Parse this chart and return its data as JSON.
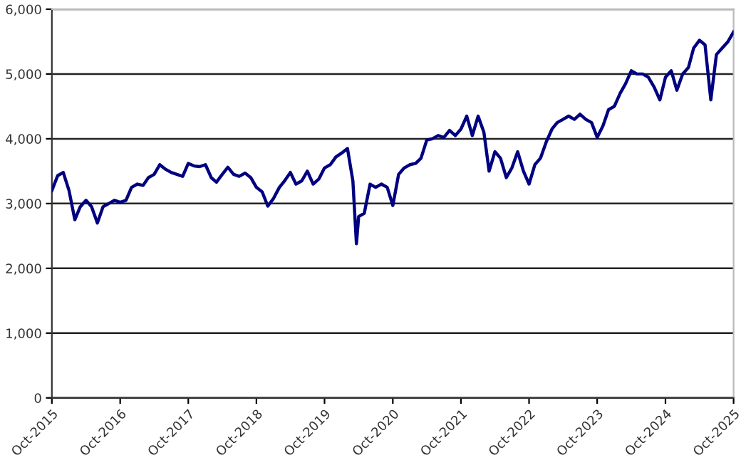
{
  "chart_data": {
    "type": "line",
    "x": [
      "2015-10",
      "2015-11",
      "2015-12",
      "2016-01",
      "2016-02",
      "2016-03",
      "2016-04",
      "2016-05",
      "2016-06",
      "2016-07",
      "2016-08",
      "2016-09",
      "2016-10",
      "2016-11",
      "2016-12",
      "2017-01",
      "2017-02",
      "2017-03",
      "2017-04",
      "2017-05",
      "2017-06",
      "2017-07",
      "2017-08",
      "2017-09",
      "2017-10",
      "2017-11",
      "2017-12",
      "2018-01",
      "2018-02",
      "2018-03",
      "2018-04",
      "2018-05",
      "2018-06",
      "2018-07",
      "2018-08",
      "2018-09",
      "2018-10",
      "2018-11",
      "2018-12",
      "2019-01",
      "2019-02",
      "2019-03",
      "2019-04",
      "2019-05",
      "2019-06",
      "2019-07",
      "2019-08",
      "2019-09",
      "2019-10",
      "2019-11",
      "2019-12",
      "2020-01",
      "2020-02",
      "2020-03",
      "2020-03-20",
      "2020-04",
      "2020-05",
      "2020-06",
      "2020-07",
      "2020-08",
      "2020-09",
      "2020-10",
      "2020-11",
      "2020-12",
      "2021-01",
      "2021-02",
      "2021-03",
      "2021-04",
      "2021-05",
      "2021-06",
      "2021-07",
      "2021-08",
      "2021-09",
      "2021-10",
      "2021-11",
      "2021-12",
      "2022-01",
      "2022-02",
      "2022-03",
      "2022-04",
      "2022-05",
      "2022-06",
      "2022-07",
      "2022-08",
      "2022-09",
      "2022-10",
      "2022-11",
      "2022-12",
      "2023-01",
      "2023-02",
      "2023-03",
      "2023-04",
      "2023-05",
      "2023-06",
      "2023-07",
      "2023-08",
      "2023-09",
      "2023-10",
      "2023-11",
      "2023-12",
      "2024-01",
      "2024-02",
      "2024-03",
      "2024-04",
      "2024-05",
      "2024-06",
      "2024-07",
      "2024-08",
      "2024-09",
      "2024-10",
      "2024-11",
      "2024-12",
      "2025-01",
      "2025-02",
      "2025-03",
      "2025-04",
      "2025-05",
      "2025-06",
      "2025-07",
      "2025-08",
      "2025-09",
      "2025-10"
    ],
    "series": [
      {
        "color": "#000080",
        "values": [
          3200,
          3430,
          3480,
          3200,
          2750,
          2950,
          3050,
          2950,
          2700,
          2950,
          3000,
          3050,
          3020,
          3050,
          3250,
          3300,
          3280,
          3400,
          3450,
          3600,
          3530,
          3480,
          3450,
          3420,
          3620,
          3580,
          3570,
          3600,
          3400,
          3330,
          3450,
          3560,
          3450,
          3420,
          3470,
          3400,
          3250,
          3180,
          2960,
          3080,
          3250,
          3350,
          3480,
          3300,
          3350,
          3500,
          3300,
          3380,
          3550,
          3600,
          3720,
          3780,
          3850,
          3350,
          2380,
          2800,
          2850,
          3300,
          3250,
          3300,
          3250,
          2970,
          3450,
          3550,
          3600,
          3620,
          3700,
          3980,
          4000,
          4050,
          4020,
          4130,
          4050,
          4150,
          4350,
          4050,
          4350,
          4100,
          3500,
          3800,
          3700,
          3400,
          3550,
          3800,
          3500,
          3300,
          3600,
          3700,
          3950,
          4150,
          4250,
          4300,
          4350,
          4300,
          4380,
          4300,
          4250,
          4020,
          4200,
          4450,
          4500,
          4700,
          4850,
          5050,
          5000,
          5000,
          4950,
          4800,
          4600,
          4950,
          5050,
          4750,
          5000,
          5100,
          5400,
          5520,
          5450,
          4600,
          5300,
          5400,
          5500,
          5650
        ]
      }
    ],
    "xlim": [
      "2015-10",
      "2025-10"
    ],
    "xticks": [
      {
        "value": "2015-10",
        "label": "Oct-2015"
      },
      {
        "value": "2016-10",
        "label": "Oct-2016"
      },
      {
        "value": "2017-10",
        "label": "Oct-2017"
      },
      {
        "value": "2018-10",
        "label": "Oct-2018"
      },
      {
        "value": "2019-10",
        "label": "Oct-2019"
      },
      {
        "value": "2020-10",
        "label": "Oct-2020"
      },
      {
        "value": "2021-10",
        "label": "Oct-2021"
      },
      {
        "value": "2022-10",
        "label": "Oct-2022"
      },
      {
        "value": "2023-10",
        "label": "Oct-2023"
      },
      {
        "value": "2024-10",
        "label": "Oct-2024"
      },
      {
        "value": "2025-10",
        "label": "Oct-2025"
      }
    ],
    "ylim": [
      0,
      6000
    ],
    "yticks": [
      {
        "value": 0,
        "label": "0"
      },
      {
        "value": 1000,
        "label": "1,000"
      },
      {
        "value": 2000,
        "label": "2,000"
      },
      {
        "value": 3000,
        "label": "3,000"
      },
      {
        "value": 4000,
        "label": "4,000"
      },
      {
        "value": 5000,
        "label": "5,000"
      },
      {
        "value": 6000,
        "label": "6,000"
      }
    ],
    "grid": "y",
    "legend": false,
    "marker": "none",
    "line_style": "solid"
  }
}
